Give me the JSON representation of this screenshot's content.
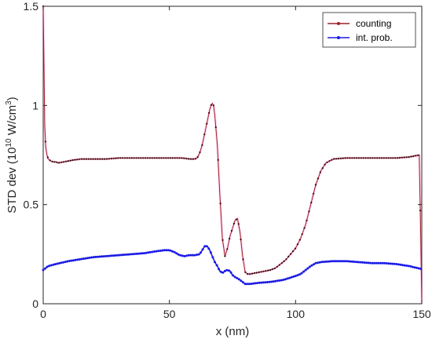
{
  "chart_data": {
    "type": "line",
    "title": "",
    "xlabel": "x (nm)",
    "ylabel_main": "STD dev (10",
    "ylabel_sup1": "10",
    "ylabel_mid": " W/cm",
    "ylabel_sup2": "3",
    "ylabel_end": ")",
    "xlim": [
      0,
      150
    ],
    "ylim": [
      0,
      1.5
    ],
    "xticks": [
      0,
      50,
      100,
      150
    ],
    "xtick_labels": [
      "0",
      "50",
      "100",
      "150"
    ],
    "yticks": [
      0,
      0.5,
      1,
      1.5
    ],
    "ytick_labels": [
      "0",
      "0.5",
      "1",
      "1.5"
    ],
    "grid": false,
    "legend_position": "top-right",
    "series": [
      {
        "name": "counting",
        "color": "#a0202a",
        "x": [
          0,
          0.3,
          0.6,
          1,
          1.5,
          2,
          3,
          4,
          5,
          6,
          8,
          10,
          12,
          15,
          20,
          25,
          30,
          35,
          40,
          45,
          50,
          52,
          55,
          58,
          60,
          61,
          62,
          63,
          64,
          65,
          66,
          66.5,
          67,
          67.5,
          68,
          69,
          70,
          71,
          72,
          73,
          74,
          75,
          76,
          77,
          78,
          79,
          80,
          81,
          82,
          84,
          86,
          88,
          90,
          92,
          94,
          96,
          98,
          100,
          102,
          104,
          106,
          108,
          110,
          112,
          115,
          120,
          125,
          130,
          135,
          140,
          145,
          149,
          149.5,
          150
        ],
        "y": [
          1.5,
          1.2,
          0.9,
          0.79,
          0.75,
          0.73,
          0.72,
          0.715,
          0.715,
          0.71,
          0.715,
          0.72,
          0.725,
          0.73,
          0.73,
          0.73,
          0.735,
          0.735,
          0.735,
          0.735,
          0.735,
          0.735,
          0.735,
          0.73,
          0.73,
          0.735,
          0.76,
          0.8,
          0.86,
          0.92,
          0.98,
          1.0,
          1.01,
          1.0,
          0.95,
          0.8,
          0.55,
          0.33,
          0.24,
          0.28,
          0.34,
          0.38,
          0.42,
          0.43,
          0.36,
          0.24,
          0.16,
          0.15,
          0.15,
          0.155,
          0.16,
          0.165,
          0.17,
          0.18,
          0.2,
          0.22,
          0.25,
          0.28,
          0.33,
          0.4,
          0.5,
          0.6,
          0.67,
          0.71,
          0.73,
          0.735,
          0.735,
          0.735,
          0.735,
          0.735,
          0.74,
          0.75,
          0.4,
          0.0
        ]
      },
      {
        "name": "int. prob.",
        "color": "#1a1ae6",
        "x": [
          0,
          2,
          5,
          10,
          15,
          20,
          25,
          30,
          35,
          40,
          45,
          48,
          50,
          52,
          54,
          56,
          58,
          60,
          62,
          63,
          64,
          65,
          66,
          67,
          68,
          69,
          70,
          71,
          72,
          73,
          74,
          75,
          76,
          78,
          80,
          82,
          85,
          90,
          95,
          100,
          102,
          104,
          106,
          108,
          110,
          115,
          120,
          125,
          130,
          135,
          140,
          145,
          150
        ],
        "y": [
          0.17,
          0.19,
          0.2,
          0.215,
          0.225,
          0.235,
          0.24,
          0.245,
          0.25,
          0.255,
          0.265,
          0.27,
          0.27,
          0.26,
          0.245,
          0.24,
          0.245,
          0.245,
          0.25,
          0.27,
          0.29,
          0.29,
          0.27,
          0.24,
          0.21,
          0.19,
          0.165,
          0.155,
          0.165,
          0.17,
          0.165,
          0.145,
          0.135,
          0.12,
          0.1,
          0.1,
          0.105,
          0.11,
          0.12,
          0.14,
          0.15,
          0.17,
          0.19,
          0.205,
          0.21,
          0.215,
          0.215,
          0.21,
          0.205,
          0.205,
          0.2,
          0.19,
          0.175
        ]
      }
    ]
  }
}
